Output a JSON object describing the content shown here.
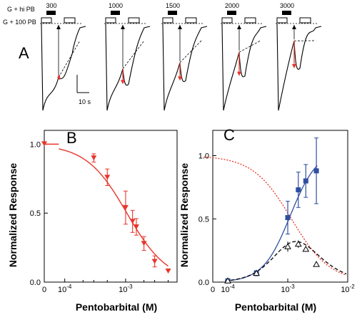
{
  "figure": {
    "panel_labels": [
      "A",
      "B",
      "C"
    ],
    "legend_lines": [
      "G + hi PB",
      "G + 100 PB"
    ],
    "trace_concentrations": [
      "300",
      "1000",
      "1500",
      "2000",
      "3000"
    ],
    "scale_bar_label": "10 s"
  },
  "colors": {
    "red": "#e8342a",
    "blue": "#2e4fa0",
    "black": "#000000"
  },
  "chart_data": [
    {
      "panel": "B",
      "type": "scatter",
      "xscale": "log",
      "xlim": [
        3e-05,
        0.007
      ],
      "ylim": [
        0,
        1.1
      ],
      "xlabel": "Pentobarbital (M)",
      "ylabel": "Normalized Response",
      "xticks": [
        "0",
        "10^-4",
        "10^-3"
      ],
      "yticks": [
        "0.0",
        "0.5",
        "1.0"
      ],
      "series": [
        {
          "marker": "triangle-down",
          "color": "#e8342a",
          "x": [
            0.0003,
            0.0005,
            0.001,
            0.0013,
            0.0015,
            0.002,
            0.003,
            0.005
          ],
          "y": [
            0.9,
            0.76,
            0.54,
            0.44,
            0.4,
            0.28,
            0.15,
            0.08
          ],
          "err": [
            0.03,
            0.06,
            0.12,
            0.08,
            0.06,
            0.05,
            0.04,
            0.02
          ],
          "fit": "hill"
        }
      ]
    },
    {
      "panel": "C",
      "type": "scatter",
      "xscale": "log",
      "xlim": [
        3e-05,
        0.01
      ],
      "ylim": [
        0,
        1.2
      ],
      "xlabel": "Pentobarbital (M)",
      "ylabel": "Normalized Response",
      "xticks": [
        "0",
        "10^-4",
        "10^-3",
        "10^-2"
      ],
      "yticks": [
        "0.0",
        "0.5",
        "1.0"
      ],
      "series": [
        {
          "marker": "square",
          "color": "#2e4fa0",
          "x": [
            0.0001,
            0.0003,
            0.001,
            0.0015,
            0.002,
            0.003
          ],
          "y": [
            0.01,
            0.07,
            0.51,
            0.73,
            0.8,
            0.88
          ],
          "err": [
            0.01,
            0.02,
            0.13,
            0.14,
            0.13,
            0.26
          ],
          "fit": "blue-solid"
        },
        {
          "marker": "triangle-up-open",
          "color": "#000000",
          "x": [
            0.0001,
            0.0003,
            0.001,
            0.0015,
            0.002,
            0.003
          ],
          "y": [
            0.01,
            0.07,
            0.28,
            0.3,
            0.26,
            0.14
          ],
          "err": [
            0.01,
            0.01,
            0.04,
            0.03,
            0.02,
            0.0
          ],
          "fit": "black-dashed"
        },
        {
          "marker": "none",
          "color": "#e8342a",
          "fit": "red-dotted-inhibition"
        }
      ]
    }
  ]
}
